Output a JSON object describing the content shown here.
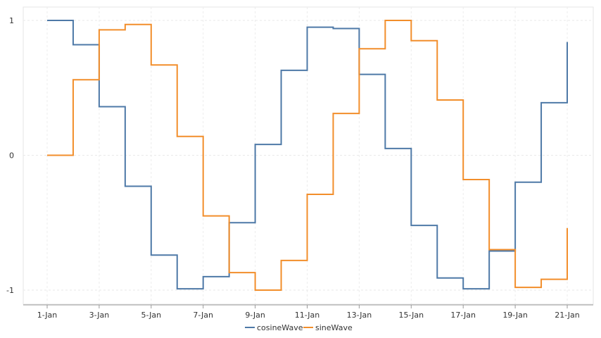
{
  "chart_data": {
    "type": "line",
    "step": true,
    "x": [
      "1-Jan",
      "2-Jan",
      "3-Jan",
      "4-Jan",
      "5-Jan",
      "6-Jan",
      "7-Jan",
      "8-Jan",
      "9-Jan",
      "10-Jan",
      "11-Jan",
      "12-Jan",
      "13-Jan",
      "14-Jan",
      "15-Jan",
      "16-Jan",
      "17-Jan",
      "18-Jan",
      "19-Jan",
      "20-Jan",
      "21-Jan"
    ],
    "x_tick_labels": [
      "1-Jan",
      "3-Jan",
      "5-Jan",
      "7-Jan",
      "9-Jan",
      "11-Jan",
      "13-Jan",
      "15-Jan",
      "17-Jan",
      "19-Jan",
      "21-Jan"
    ],
    "y_tick_labels": [
      "1",
      "0",
      "-1"
    ],
    "ylim": [
      -1.1,
      1.1
    ],
    "grid": true,
    "legend_position": "bottom",
    "title": "",
    "xlabel": "",
    "ylabel": "",
    "series": [
      {
        "name": "cosineWave",
        "color": "#4e79a7",
        "values": [
          1.0,
          0.82,
          0.36,
          -0.23,
          -0.74,
          -0.99,
          -0.9,
          -0.5,
          0.08,
          0.63,
          0.95,
          0.94,
          0.6,
          0.05,
          -0.52,
          -0.91,
          -0.99,
          -0.71,
          -0.2,
          0.39,
          0.84
        ]
      },
      {
        "name": "sineWave",
        "color": "#f28e2b",
        "values": [
          0.0,
          0.56,
          0.93,
          0.97,
          0.67,
          0.14,
          -0.45,
          -0.87,
          -1.0,
          -0.78,
          -0.29,
          0.31,
          0.79,
          1.0,
          0.85,
          0.41,
          -0.18,
          -0.7,
          -0.98,
          -0.92,
          -0.54
        ]
      }
    ]
  }
}
